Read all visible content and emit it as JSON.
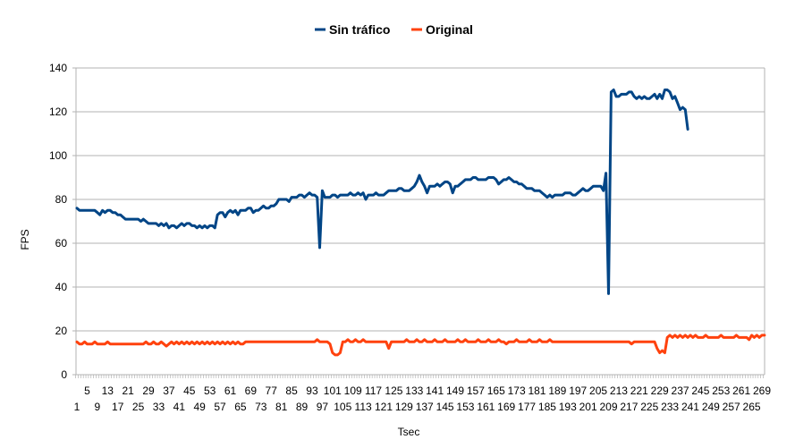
{
  "chart_data": {
    "type": "line",
    "title": "",
    "xlabel": "Tsec",
    "ylabel": "FPS",
    "ylim": [
      0,
      140
    ],
    "y_ticks": [
      0,
      20,
      40,
      60,
      80,
      100,
      120,
      140
    ],
    "x_range": [
      1,
      270
    ],
    "x_tick_label_step": 4,
    "grid": "horizontal",
    "legend": "top-center",
    "series": [
      {
        "name": "Sin tráfico",
        "color": "#004586",
        "values": [
          76,
          75,
          75,
          75,
          75,
          75,
          75,
          75,
          74,
          73,
          75,
          74,
          75,
          75,
          74,
          74,
          73,
          73,
          72,
          71,
          71,
          71,
          71,
          71,
          71,
          70,
          71,
          70,
          69,
          69,
          69,
          69,
          68,
          69,
          68,
          69,
          67,
          68,
          68,
          67,
          68,
          69,
          68,
          69,
          69,
          68,
          68,
          67,
          68,
          67,
          68,
          67,
          68,
          68,
          67,
          73,
          74,
          74,
          72,
          74,
          75,
          74,
          75,
          73,
          75,
          75,
          75,
          76,
          76,
          74,
          75,
          75,
          76,
          77,
          76,
          76,
          77,
          77,
          78,
          80,
          80,
          80,
          80,
          79,
          81,
          81,
          81,
          82,
          82,
          81,
          82,
          83,
          82,
          82,
          81,
          58,
          84,
          81,
          81,
          81,
          82,
          82,
          81,
          82,
          82,
          82,
          82,
          83,
          82,
          82,
          83,
          82,
          83,
          80,
          82,
          82,
          82,
          83,
          82,
          82,
          82,
          83,
          84,
          84,
          84,
          84,
          85,
          85,
          84,
          84,
          84,
          85,
          86,
          88,
          91,
          88,
          86,
          83,
          86,
          86,
          86,
          87,
          86,
          87,
          88,
          88,
          87,
          83,
          86,
          86,
          87,
          88,
          89,
          89,
          89,
          90,
          90,
          89,
          89,
          89,
          89,
          90,
          90,
          90,
          89,
          87,
          88,
          89,
          89,
          90,
          89,
          88,
          88,
          87,
          87,
          86,
          85,
          85,
          85,
          84,
          84,
          84,
          83,
          82,
          81,
          82,
          81,
          82,
          82,
          82,
          82,
          83,
          83,
          83,
          82,
          82,
          83,
          84,
          85,
          84,
          84,
          85,
          86,
          86,
          86,
          86,
          84,
          92,
          37,
          129,
          130,
          127,
          127,
          128,
          128,
          128,
          129,
          129,
          127,
          126,
          127,
          126,
          127,
          126,
          126,
          127,
          128,
          126,
          128,
          126,
          130,
          130,
          129,
          126,
          127,
          124,
          121,
          122,
          121,
          112
        ]
      },
      {
        "name": "Original",
        "color": "#ff420e",
        "values": [
          15,
          14,
          14,
          15,
          14,
          14,
          14,
          15,
          14,
          14,
          14,
          14,
          15,
          14,
          14,
          14,
          14,
          14,
          14,
          14,
          14,
          14,
          14,
          14,
          14,
          14,
          14,
          15,
          14,
          14,
          15,
          14,
          14,
          15,
          14,
          13,
          14,
          15,
          14,
          15,
          14,
          15,
          14,
          15,
          14,
          15,
          14,
          15,
          14,
          15,
          14,
          15,
          14,
          15,
          14,
          15,
          14,
          15,
          14,
          15,
          14,
          15,
          14,
          15,
          14,
          14,
          15,
          15,
          15,
          15,
          15,
          15,
          15,
          15,
          15,
          15,
          15,
          15,
          15,
          15,
          15,
          15,
          15,
          15,
          15,
          15,
          15,
          15,
          15,
          15,
          15,
          15,
          15,
          15,
          16,
          15,
          15,
          15,
          15,
          14,
          10,
          9,
          9,
          10,
          15,
          15,
          16,
          15,
          15,
          16,
          15,
          15,
          16,
          15,
          15,
          15,
          15,
          15,
          15,
          15,
          15,
          15,
          12,
          15,
          15,
          15,
          15,
          15,
          15,
          16,
          15,
          15,
          15,
          16,
          15,
          15,
          16,
          15,
          15,
          15,
          16,
          15,
          15,
          15,
          16,
          15,
          15,
          15,
          15,
          16,
          15,
          15,
          16,
          15,
          15,
          15,
          15,
          16,
          15,
          15,
          15,
          16,
          15,
          15,
          15,
          16,
          15,
          15,
          14,
          15,
          15,
          15,
          16,
          15,
          15,
          15,
          15,
          16,
          15,
          15,
          15,
          16,
          15,
          15,
          15,
          16,
          15,
          15,
          15,
          15,
          15,
          15,
          15,
          15,
          15,
          15,
          15,
          15,
          15,
          15,
          15,
          15,
          15,
          15,
          15,
          15,
          15,
          15,
          15,
          15,
          15,
          15,
          15,
          15,
          15,
          15,
          15,
          14,
          15,
          15,
          15,
          15,
          15,
          15,
          15,
          15,
          15,
          12,
          10,
          11,
          10,
          17,
          18,
          17,
          18,
          17,
          18,
          17,
          18,
          17,
          18,
          17,
          18,
          17,
          17,
          17,
          18,
          17,
          17,
          17,
          17,
          17,
          18,
          17,
          17,
          17,
          17,
          17,
          18,
          17,
          17,
          17,
          17,
          16,
          18,
          17,
          18,
          17,
          18,
          18
        ]
      }
    ]
  }
}
